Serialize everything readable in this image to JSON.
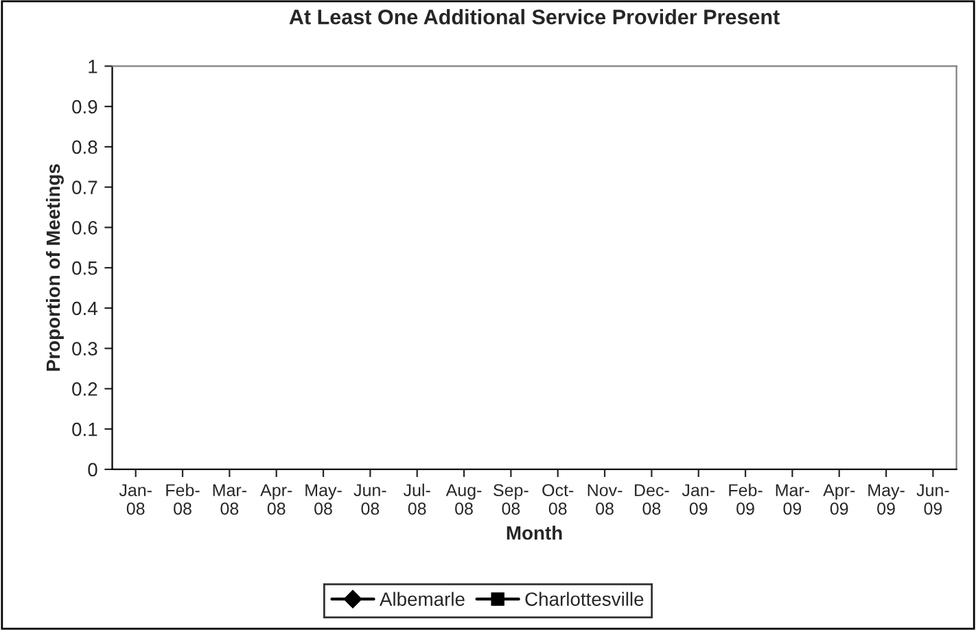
{
  "chart_data": {
    "type": "line",
    "title": "At Least One Additional Service Provider Present",
    "xlabel": "Month",
    "ylabel": "Proportion of Meetings",
    "categories": [
      "Jan-08",
      "Feb-08",
      "Mar-08",
      "Apr-08",
      "May-08",
      "Jun-08",
      "Jul-08",
      "Aug-08",
      "Sep-08",
      "Oct-08",
      "Nov-08",
      "Dec-08",
      "Jan-09",
      "Feb-09",
      "Mar-09",
      "Apr-09",
      "May-09",
      "Jun-09"
    ],
    "series": [
      {
        "name": "Albemarle",
        "color": "#000000",
        "marker": "diamond",
        "values": [
          null,
          null,
          null,
          null,
          null,
          null,
          null,
          null,
          null,
          null,
          null,
          null,
          null,
          null,
          null,
          null,
          null,
          null
        ]
      },
      {
        "name": "Charlottesville",
        "color": "#000000",
        "marker": "square",
        "values": [
          null,
          null,
          null,
          null,
          null,
          null,
          null,
          null,
          null,
          null,
          null,
          null,
          null,
          null,
          null,
          null,
          null,
          null
        ]
      }
    ],
    "ylim": [
      0,
      1
    ],
    "yticks": [
      0,
      0.1,
      0.2,
      0.3,
      0.4,
      0.5,
      0.6,
      0.7,
      0.8,
      0.9,
      1
    ],
    "grid": false,
    "legend": "bottom"
  }
}
